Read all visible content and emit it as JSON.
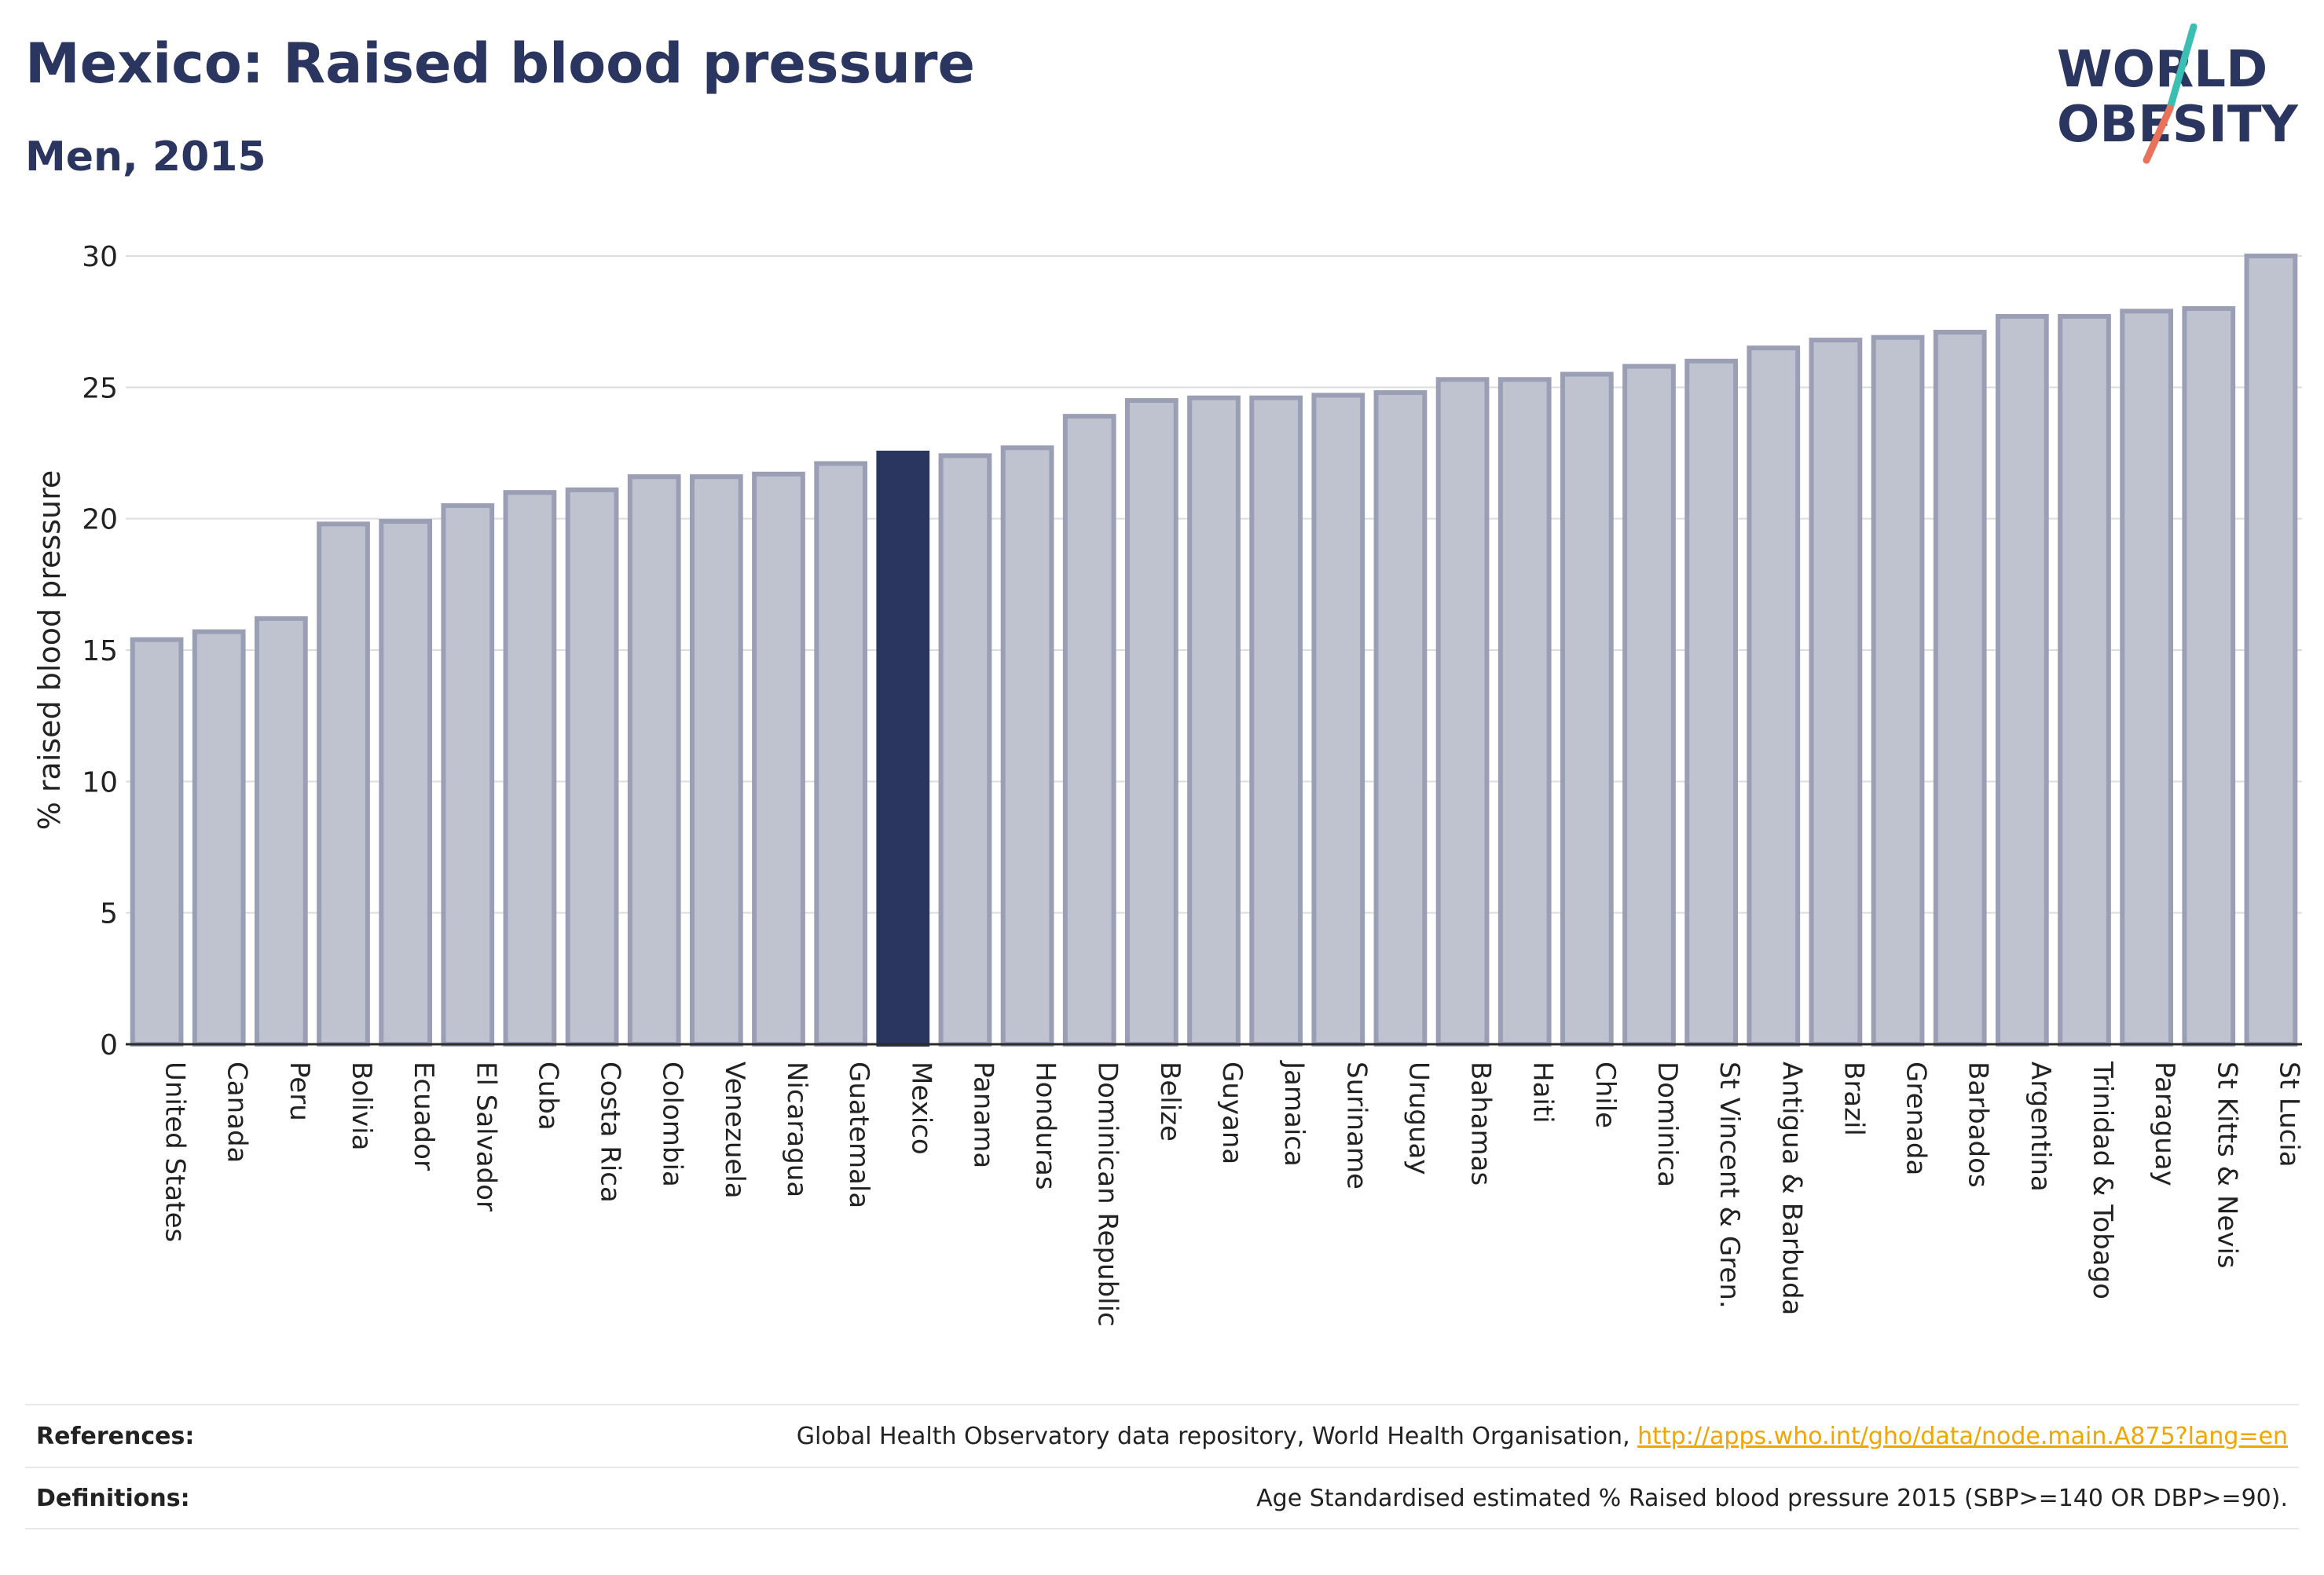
{
  "header": {
    "title": "Mexico: Raised blood pressure",
    "subtitle": "Men, 2015"
  },
  "logo": {
    "line1": "WORLD",
    "line2": "OBESITY"
  },
  "colors": {
    "bar_fill": "#bfc2cf",
    "bar_stroke": "#9a9fb5",
    "highlight": "#2b3660",
    "grid": "#dcdde3",
    "logo_teal": "#3bbfb3",
    "logo_coral": "#e8735a",
    "link": "#f0a500"
  },
  "chart_data": {
    "type": "bar",
    "ylabel": "% raised blood pressure",
    "ylim": [
      0,
      30
    ],
    "yticks": [
      0,
      5,
      10,
      15,
      20,
      25,
      30
    ],
    "grid": true,
    "highlight": "Mexico",
    "categories": [
      "United States",
      "Canada",
      "Peru",
      "Bolivia",
      "Ecuador",
      "El Salvador",
      "Cuba",
      "Costa Rica",
      "Colombia",
      "Venezuela",
      "Nicaragua",
      "Guatemala",
      "Mexico",
      "Panama",
      "Honduras",
      "Dominican Republic",
      "Belize",
      "Guyana",
      "Jamaica",
      "Suriname",
      "Uruguay",
      "Bahamas",
      "Haiti",
      "Chile",
      "Dominica",
      "St Vincent & Gren.",
      "Antigua & Barbuda",
      "Brazil",
      "Grenada",
      "Barbados",
      "Argentina",
      "Trinidad & Tobago",
      "Paraguay",
      "St Kitts & Nevis",
      "St Lucia"
    ],
    "values": [
      15.4,
      15.7,
      16.2,
      19.8,
      19.9,
      20.5,
      21.0,
      21.1,
      21.6,
      21.6,
      21.7,
      22.1,
      22.5,
      22.4,
      22.7,
      23.9,
      24.5,
      24.6,
      24.6,
      24.7,
      24.8,
      25.3,
      25.3,
      25.5,
      25.8,
      26.0,
      26.5,
      26.8,
      26.9,
      27.1,
      27.7,
      27.7,
      27.9,
      28.0,
      30.0
    ]
  },
  "footer": {
    "references_label": "References:",
    "references_text": "Global Health Observatory data repository, World Health Organisation, ",
    "references_link": "http://apps.who.int/gho/data/node.main.A875?lang=en",
    "definitions_label": "Definitions:",
    "definitions_text": "Age Standardised estimated % Raised blood pressure 2015 (SBP>=140 OR DBP>=90)."
  }
}
